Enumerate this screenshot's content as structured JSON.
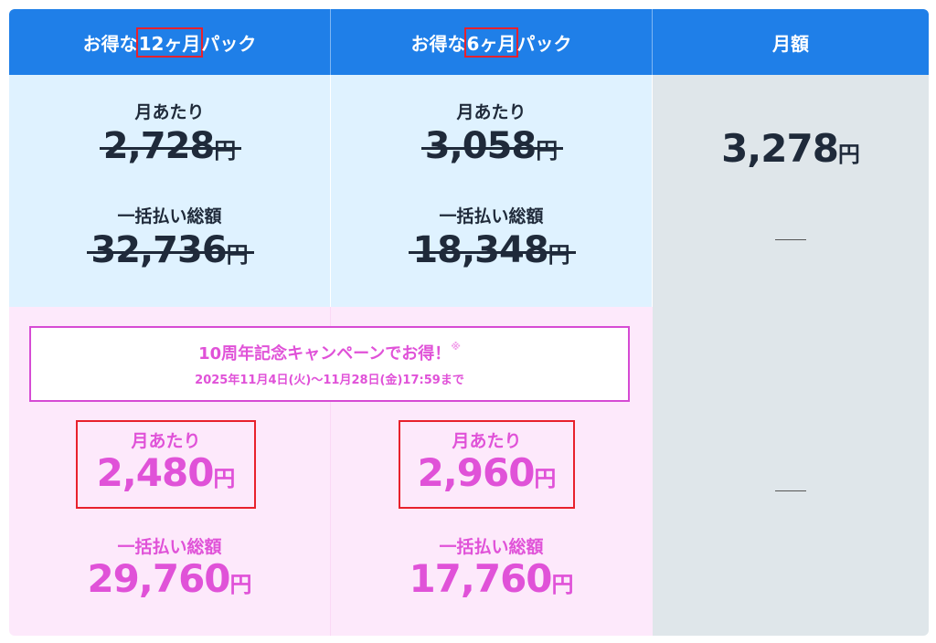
{
  "header": {
    "col1": {
      "pre": "お得な",
      "hl": "12ヶ月",
      "post": "パック"
    },
    "col2": {
      "pre": "お得な",
      "hl": "6ヶ月",
      "post": "パック"
    },
    "col3": "月額"
  },
  "regular": {
    "pack12": {
      "monthly_label": "月あたり",
      "monthly": "2,728",
      "total_label": "一括払い総額",
      "total": "32,736"
    },
    "pack6": {
      "monthly_label": "月あたり",
      "monthly": "3,058",
      "total_label": "一括払い総額",
      "total": "18,348"
    },
    "monthly_plan": {
      "price": "3,278",
      "dash": "—"
    }
  },
  "yen": "円",
  "campaign": {
    "title": "10周年記念キャンペーンでお得！",
    "mark": "※",
    "period": "2025年11月4日(火)〜11月28日(金)17:59まで"
  },
  "sale": {
    "pack12": {
      "monthly_label": "月あたり",
      "monthly": "2,480",
      "total_label": "一括払い総額",
      "total": "29,760"
    },
    "pack6": {
      "monthly_label": "月あたり",
      "monthly": "2,960",
      "total_label": "一括払い総額",
      "total": "17,760"
    },
    "monthly_plan": {
      "dash": "—"
    }
  },
  "colors": {
    "header": "#1f7fe8",
    "pink_text": "#e052d8",
    "highlight": "#e8212c"
  }
}
